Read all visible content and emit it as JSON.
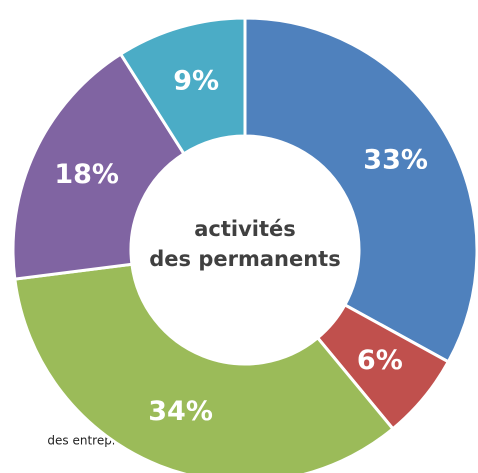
{
  "chart_data": {
    "type": "donut",
    "center_text": [
      "activités",
      "des permanents"
    ],
    "annotation": "des entreprises",
    "values": [
      33,
      6,
      34,
      18,
      9
    ],
    "value_labels": [
      "33%",
      "6%",
      "34%",
      "18%",
      "9%"
    ],
    "colors": [
      "#4f81bd",
      "#c0504d",
      "#9bbb59",
      "#8064a2",
      "#4bacc6"
    ]
  }
}
